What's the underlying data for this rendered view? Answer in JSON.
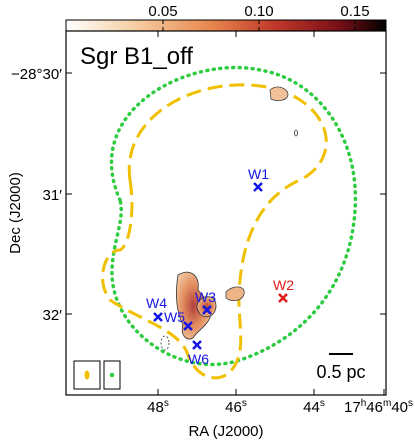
{
  "colorbar": {
    "tick_labels": [
      "0.05",
      "0.10",
      "0.15"
    ],
    "gradient_colors": [
      "#ffffff",
      "#f6d2a8",
      "#e8884e",
      "#c0392b",
      "#7a1016",
      "#000000"
    ]
  },
  "panel": {
    "title": "Sgr B1_off",
    "scalebar_label": "0.5 pc"
  },
  "axes": {
    "xlabel": "RA (J2000)",
    "ylabel": "Dec (J2000)",
    "x_ticks": [
      {
        "label": "48",
        "sup": "s"
      },
      {
        "label": "46",
        "sup": "s"
      },
      {
        "label": "44",
        "sup": "s"
      },
      {
        "label": "17",
        "sup_parts": [
          "h",
          "46",
          "m",
          "40",
          "s"
        ]
      }
    ],
    "y_ticks": [
      {
        "label": "−28°30′"
      },
      {
        "label": "31′"
      },
      {
        "label": "32′"
      }
    ]
  },
  "sources": [
    {
      "name": "W1",
      "color": "#1515e6"
    },
    {
      "name": "W2",
      "color": "#e01a1a"
    },
    {
      "name": "W3",
      "color": "#1515e6"
    },
    {
      "name": "W4",
      "color": "#1515e6"
    },
    {
      "name": "W5",
      "color": "#1515e6"
    },
    {
      "name": "W6",
      "color": "#1515e6"
    }
  ],
  "colors": {
    "green_outline": "#2ecc40",
    "yellow_outline": "#f0c000",
    "emission": "#e9a97a",
    "emission_peak": "#b0413e"
  }
}
